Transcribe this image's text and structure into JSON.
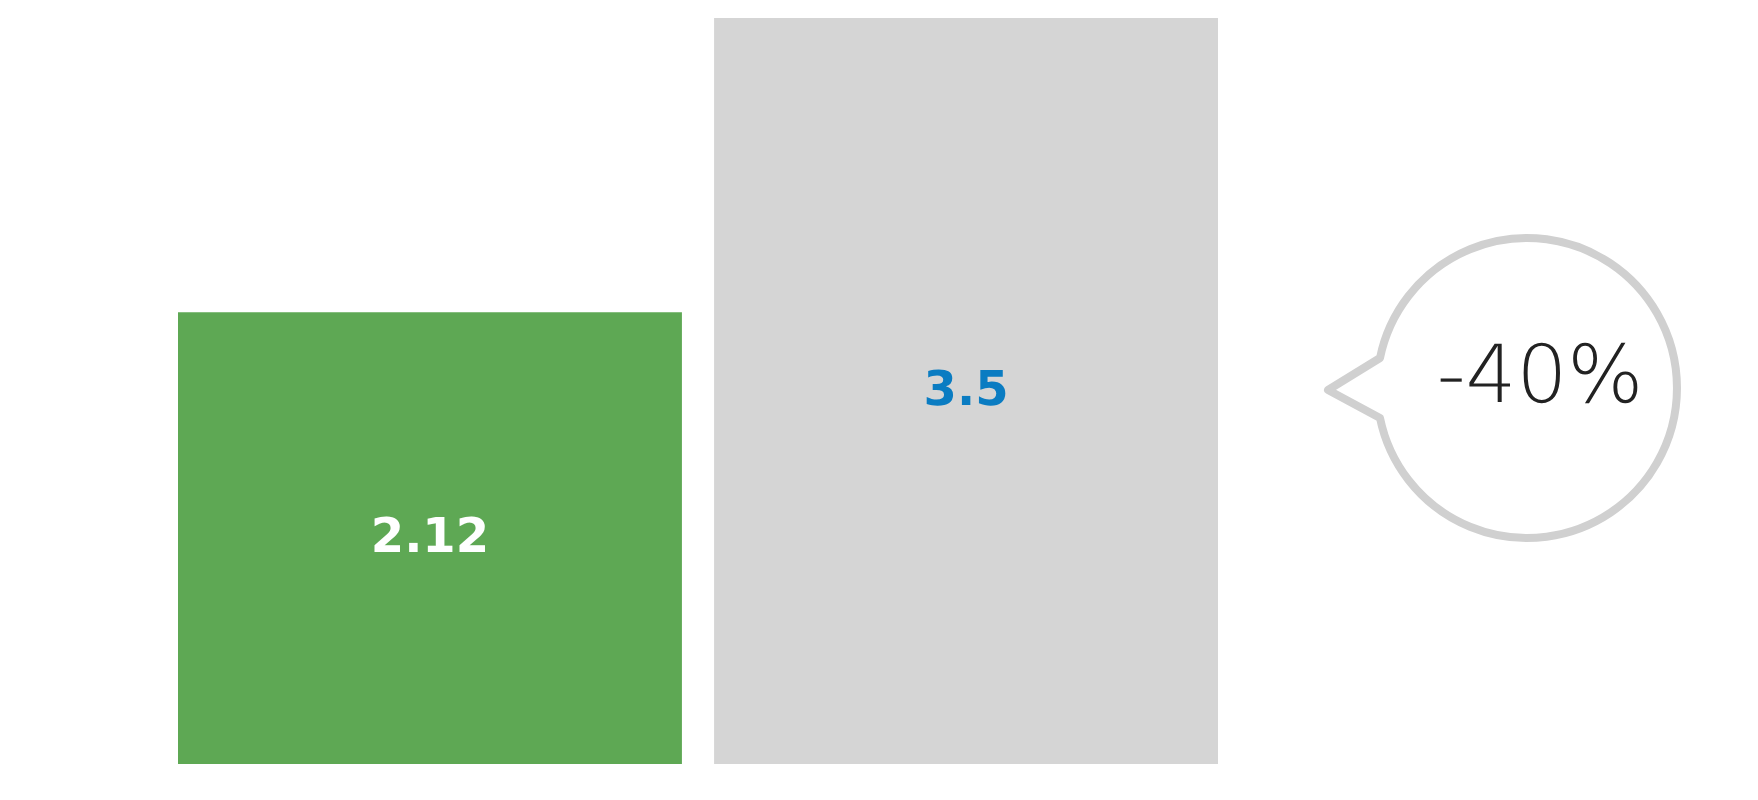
{
  "chart_data": {
    "type": "bar",
    "categories": [
      null,
      null
    ],
    "values": [
      2.12,
      3.5
    ],
    "colors": [
      "#5ea854",
      "#d5d5d5"
    ],
    "data_labels": true,
    "annotations": [
      "-40%"
    ]
  }
}
